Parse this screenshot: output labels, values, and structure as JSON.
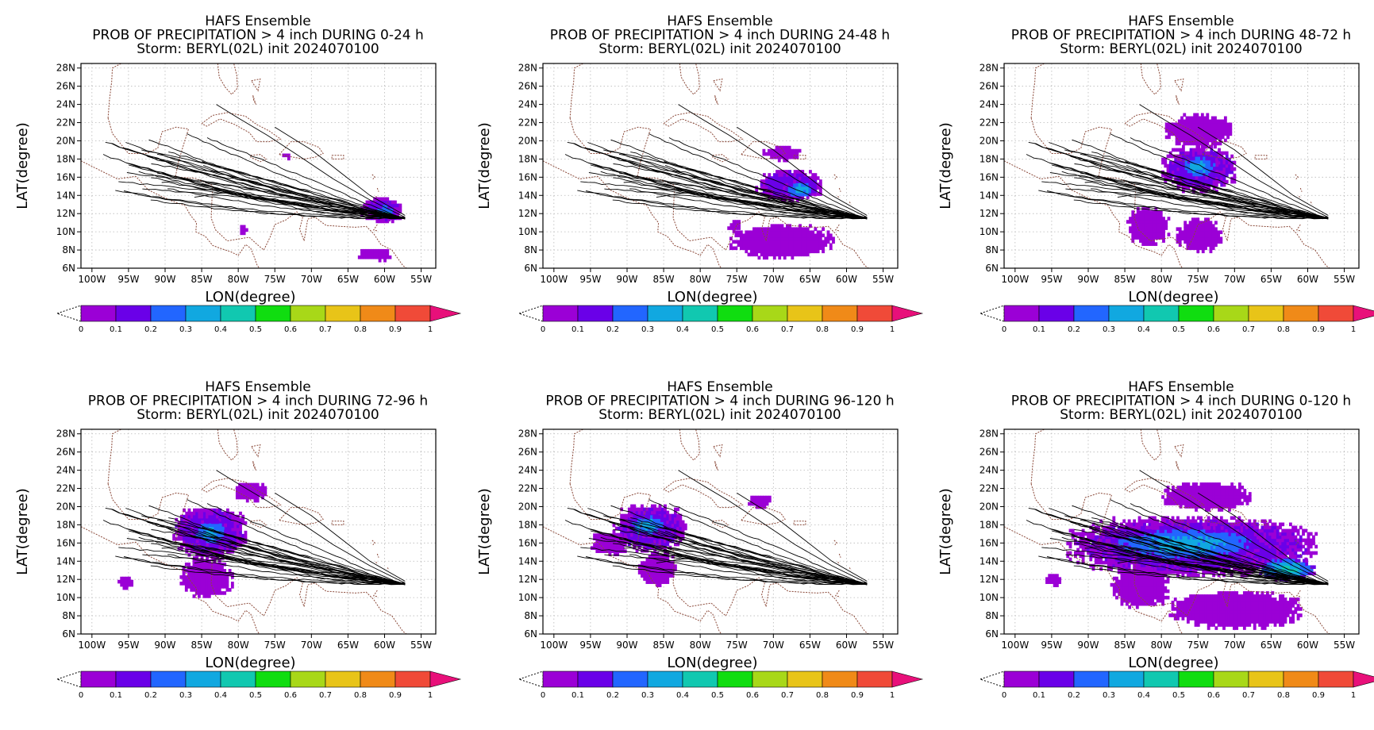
{
  "figure_title_lines": [],
  "colorbar": {
    "ticks": [
      "0",
      "0.1",
      "0.2",
      "0.3",
      "0.4",
      "0.5",
      "0.6",
      "0.7",
      "0.8",
      "0.9",
      "1"
    ],
    "colors": [
      "#9b00d6",
      "#6a00e8",
      "#2266ff",
      "#11a8e0",
      "#11c8b0",
      "#10dd10",
      "#a8d818",
      "#e8c418",
      "#f08a18",
      "#f04a38",
      "#e8107a"
    ]
  },
  "colors": {
    "coastline": "#8b4a3a",
    "track": "#000000",
    "grid": "#b8b8b8"
  },
  "chart_data": [
    {
      "type": "heatmap",
      "title": [
        "HAFS Ensemble",
        "PROB OF PRECIPITATION > 4 inch DURING  0-24 h",
        "Storm: BERYL(02L) init 2024070100"
      ],
      "xlabel": "LON(degree)",
      "ylabel": "LAT(degree)",
      "x_ticks": [
        "100W",
        "95W",
        "90W",
        "85W",
        "80W",
        "75W",
        "70W",
        "65W",
        "60W",
        "55W"
      ],
      "y_ticks": [
        "6N",
        "8N",
        "10N",
        "12N",
        "14N",
        "16N",
        "18N",
        "20N",
        "22N",
        "24N",
        "26N",
        "28N"
      ],
      "xlim": [
        -101.5,
        -53
      ],
      "ylim": [
        6,
        28.5
      ],
      "grid": true,
      "value_range": [
        0,
        1
      ],
      "precip_regions": [
        {
          "lon": -60.5,
          "lat": 12.3,
          "rlon": 2.8,
          "rlat": 1.3,
          "prob": 0.15
        },
        {
          "lon": -60.2,
          "lat": 12.0,
          "rlon": 1.5,
          "rlat": 0.8,
          "prob": 0.3
        },
        {
          "lon": -61.5,
          "lat": 7.3,
          "rlon": 2.5,
          "rlat": 0.6,
          "prob": 0.05
        },
        {
          "lon": -79.5,
          "lat": 10.2,
          "rlon": 0.6,
          "rlat": 0.5,
          "prob": 0.05
        },
        {
          "lon": -73.5,
          "lat": 18.2,
          "rlon": 0.5,
          "rlat": 0.3,
          "prob": 0.05
        }
      ]
    },
    {
      "type": "heatmap",
      "title": [
        "HAFS Ensemble",
        "PROB OF PRECIPITATION > 4 inch DURING 24-48 h",
        "Storm: BERYL(02L) init 2024070100"
      ],
      "xlabel": "LON(degree)",
      "ylabel": "LAT(degree)",
      "x_ticks": [
        "100W",
        "95W",
        "90W",
        "85W",
        "80W",
        "75W",
        "70W",
        "65W",
        "60W",
        "55W"
      ],
      "y_ticks": [
        "6N",
        "8N",
        "10N",
        "12N",
        "14N",
        "16N",
        "18N",
        "20N",
        "22N",
        "24N",
        "26N",
        "28N"
      ],
      "xlim": [
        -101.5,
        -53
      ],
      "ylim": [
        6,
        28.5
      ],
      "grid": true,
      "value_range": [
        0,
        1
      ],
      "precip_regions": [
        {
          "lon": -68.0,
          "lat": 15.0,
          "rlon": 4.5,
          "rlat": 1.7,
          "prob": 0.15
        },
        {
          "lon": -66.5,
          "lat": 14.5,
          "rlon": 2.2,
          "rlat": 0.9,
          "prob": 0.3
        },
        {
          "lon": -69.0,
          "lat": 8.8,
          "rlon": 7.0,
          "rlat": 1.8,
          "prob": 0.05
        },
        {
          "lon": -69.0,
          "lat": 18.5,
          "rlon": 2.5,
          "rlat": 0.8,
          "prob": 0.05
        },
        {
          "lon": -75.5,
          "lat": 10.5,
          "rlon": 0.8,
          "rlat": 0.6,
          "prob": 0.05
        }
      ]
    },
    {
      "type": "heatmap",
      "title": [
        "HAFS Ensemble",
        "PROB OF PRECIPITATION > 4 inch DURING 48-72 h",
        "Storm: BERYL(02L) init 2024070100"
      ],
      "xlabel": "LON(degree)",
      "ylabel": "LAT(degree)",
      "x_ticks": [
        "100W",
        "95W",
        "90W",
        "85W",
        "80W",
        "75W",
        "70W",
        "65W",
        "60W",
        "55W"
      ],
      "y_ticks": [
        "6N",
        "8N",
        "10N",
        "12N",
        "14N",
        "16N",
        "18N",
        "20N",
        "22N",
        "24N",
        "26N",
        "28N"
      ],
      "xlim": [
        -101.5,
        -53
      ],
      "ylim": [
        6,
        28.5
      ],
      "grid": true,
      "value_range": [
        0,
        1
      ],
      "precip_regions": [
        {
          "lon": -75.0,
          "lat": 16.8,
          "rlon": 5.0,
          "rlat": 2.5,
          "prob": 0.15
        },
        {
          "lon": -75.0,
          "lat": 17.0,
          "rlon": 2.5,
          "rlat": 1.2,
          "prob": 0.3
        },
        {
          "lon": -75.0,
          "lat": 21.0,
          "rlon": 4.5,
          "rlat": 1.8,
          "prob": 0.05
        },
        {
          "lon": -82.0,
          "lat": 10.5,
          "rlon": 2.8,
          "rlat": 2.0,
          "prob": 0.05
        },
        {
          "lon": -75.0,
          "lat": 9.5,
          "rlon": 3.0,
          "rlat": 1.8,
          "prob": 0.05
        }
      ]
    },
    {
      "type": "heatmap",
      "title": [
        "HAFS Ensemble",
        "PROB OF PRECIPITATION > 4 inch DURING 72-96 h",
        "Storm: BERYL(02L) init 2024070100"
      ],
      "xlabel": "LON(degree)",
      "ylabel": "LAT(degree)",
      "x_ticks": [
        "100W",
        "95W",
        "90W",
        "85W",
        "80W",
        "75W",
        "70W",
        "65W",
        "60W",
        "55W"
      ],
      "y_ticks": [
        "6N",
        "8N",
        "10N",
        "12N",
        "14N",
        "16N",
        "18N",
        "20N",
        "22N",
        "24N",
        "26N",
        "28N"
      ],
      "xlim": [
        -101.5,
        -53
      ],
      "ylim": [
        6,
        28.5
      ],
      "grid": true,
      "value_range": [
        0,
        1
      ],
      "precip_regions": [
        {
          "lon": -84.0,
          "lat": 17.0,
          "rlon": 5.0,
          "rlat": 2.8,
          "prob": 0.15
        },
        {
          "lon": -84.0,
          "lat": 17.0,
          "rlon": 2.5,
          "rlat": 1.3,
          "prob": 0.3
        },
        {
          "lon": -84.5,
          "lat": 12.0,
          "rlon": 3.5,
          "rlat": 2.0,
          "prob": 0.05
        },
        {
          "lon": -78.5,
          "lat": 21.5,
          "rlon": 2.2,
          "rlat": 1.0,
          "prob": 0.05
        },
        {
          "lon": -95.5,
          "lat": 11.5,
          "rlon": 1.0,
          "rlat": 0.6,
          "prob": 0.05
        }
      ]
    },
    {
      "type": "heatmap",
      "title": [
        "HAFS Ensemble",
        "PROB OF PRECIPITATION > 4 inch DURING 96-120 h",
        "Storm: BERYL(02L) init 2024070100"
      ],
      "xlabel": "LON(degree)",
      "ylabel": "LAT(degree)",
      "x_ticks": [
        "100W",
        "95W",
        "90W",
        "85W",
        "80W",
        "75W",
        "70W",
        "65W",
        "60W",
        "55W"
      ],
      "y_ticks": [
        "6N",
        "8N",
        "10N",
        "12N",
        "14N",
        "16N",
        "18N",
        "20N",
        "22N",
        "24N",
        "26N",
        "28N"
      ],
      "xlim": [
        -101.5,
        -53
      ],
      "ylim": [
        6,
        28.5
      ],
      "grid": true,
      "value_range": [
        0,
        1
      ],
      "precip_regions": [
        {
          "lon": -87.0,
          "lat": 17.5,
          "rlon": 5.0,
          "rlat": 2.5,
          "prob": 0.15
        },
        {
          "lon": -87.5,
          "lat": 17.8,
          "rlon": 2.5,
          "rlat": 1.2,
          "prob": 0.3
        },
        {
          "lon": -86.0,
          "lat": 13.0,
          "rlon": 2.5,
          "rlat": 1.8,
          "prob": 0.05
        },
        {
          "lon": -92.5,
          "lat": 15.8,
          "rlon": 2.5,
          "rlat": 1.2,
          "prob": 0.05
        },
        {
          "lon": -72.0,
          "lat": 20.5,
          "rlon": 1.5,
          "rlat": 0.7,
          "prob": 0.05
        }
      ]
    },
    {
      "type": "heatmap",
      "title": [
        "HAFS Ensemble",
        "PROB OF PRECIPITATION > 4 inch DURING 0-120 h",
        "Storm: BERYL(02L) init 2024070100"
      ],
      "xlabel": "LON(degree)",
      "ylabel": "LAT(degree)",
      "x_ticks": [
        "100W",
        "95W",
        "90W",
        "85W",
        "80W",
        "75W",
        "70W",
        "65W",
        "60W",
        "55W"
      ],
      "y_ticks": [
        "6N",
        "8N",
        "10N",
        "12N",
        "14N",
        "16N",
        "18N",
        "20N",
        "22N",
        "24N",
        "26N",
        "28N"
      ],
      "xlim": [
        -101.5,
        -53
      ],
      "ylim": [
        6,
        28.5
      ],
      "grid": true,
      "value_range": [
        0,
        1
      ],
      "precip_regions": [
        {
          "lon": -76.0,
          "lat": 15.5,
          "rlon": 17.0,
          "rlat": 3.2,
          "prob": 0.15
        },
        {
          "lon": -77.0,
          "lat": 15.8,
          "rlon": 11.0,
          "rlat": 1.8,
          "prob": 0.3
        },
        {
          "lon": -63.0,
          "lat": 13.0,
          "rlon": 4.0,
          "rlat": 1.2,
          "prob": 0.35
        },
        {
          "lon": -70.0,
          "lat": 8.5,
          "rlon": 9.0,
          "rlat": 2.0,
          "prob": 0.05
        },
        {
          "lon": -83.0,
          "lat": 11.0,
          "rlon": 4.0,
          "rlat": 2.2,
          "prob": 0.05
        },
        {
          "lon": -74.0,
          "lat": 21.0,
          "rlon": 6.0,
          "rlat": 1.5,
          "prob": 0.05
        },
        {
          "lon": -95.0,
          "lat": 11.8,
          "rlon": 1.2,
          "rlat": 0.6,
          "prob": 0.05
        }
      ]
    }
  ]
}
